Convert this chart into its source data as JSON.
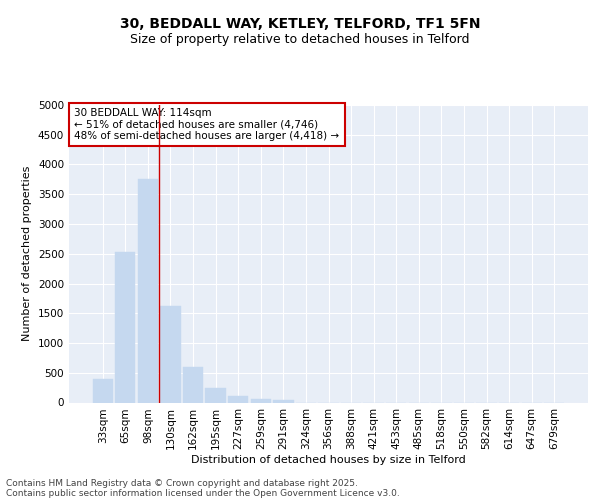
{
  "title_line1": "30, BEDDALL WAY, KETLEY, TELFORD, TF1 5FN",
  "title_line2": "Size of property relative to detached houses in Telford",
  "xlabel": "Distribution of detached houses by size in Telford",
  "ylabel": "Number of detached properties",
  "categories": [
    "33sqm",
    "65sqm",
    "98sqm",
    "130sqm",
    "162sqm",
    "195sqm",
    "227sqm",
    "259sqm",
    "291sqm",
    "324sqm",
    "356sqm",
    "388sqm",
    "421sqm",
    "453sqm",
    "485sqm",
    "518sqm",
    "550sqm",
    "582sqm",
    "614sqm",
    "647sqm",
    "679sqm"
  ],
  "values": [
    400,
    2530,
    3760,
    1620,
    600,
    250,
    105,
    55,
    50,
    0,
    0,
    0,
    0,
    0,
    0,
    0,
    0,
    0,
    0,
    0,
    0
  ],
  "bar_color": "#c5d8ef",
  "bar_edge_color": "#c5d8ef",
  "vline_color": "#cc0000",
  "annotation_text": "30 BEDDALL WAY: 114sqm\n← 51% of detached houses are smaller (4,746)\n48% of semi-detached houses are larger (4,418) →",
  "annotation_box_color": "#cc0000",
  "ylim": [
    0,
    5000
  ],
  "yticks": [
    0,
    500,
    1000,
    1500,
    2000,
    2500,
    3000,
    3500,
    4000,
    4500,
    5000
  ],
  "background_color": "#e8eef7",
  "grid_color": "#ffffff",
  "footer_line1": "Contains HM Land Registry data © Crown copyright and database right 2025.",
  "footer_line2": "Contains public sector information licensed under the Open Government Licence v3.0.",
  "title_fontsize": 10,
  "subtitle_fontsize": 9,
  "axis_label_fontsize": 8,
  "tick_fontsize": 7.5,
  "annotation_fontsize": 7.5,
  "footer_fontsize": 6.5
}
